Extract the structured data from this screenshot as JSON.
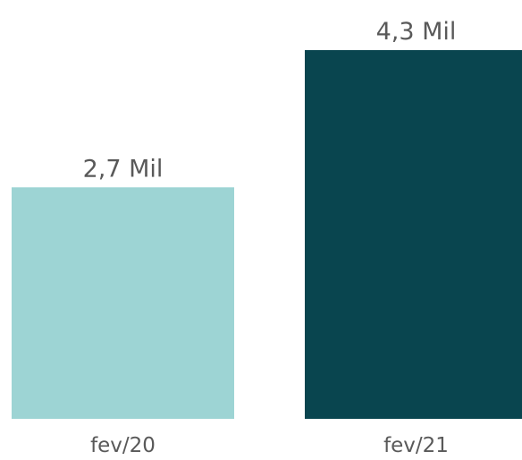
{
  "chart_data": {
    "type": "bar",
    "categories": [
      "fev/20",
      "fev/21"
    ],
    "values": [
      2.7,
      4.3
    ],
    "data_labels": [
      "2,7 Mil",
      "4,3 Mil"
    ],
    "ylim": [
      0,
      4.3
    ],
    "grid": false,
    "legend": "none",
    "colors": [
      "#9dd4d4",
      "#09454f"
    ]
  },
  "colors": {
    "background": "#ffffff",
    "label_text": "#595959"
  }
}
